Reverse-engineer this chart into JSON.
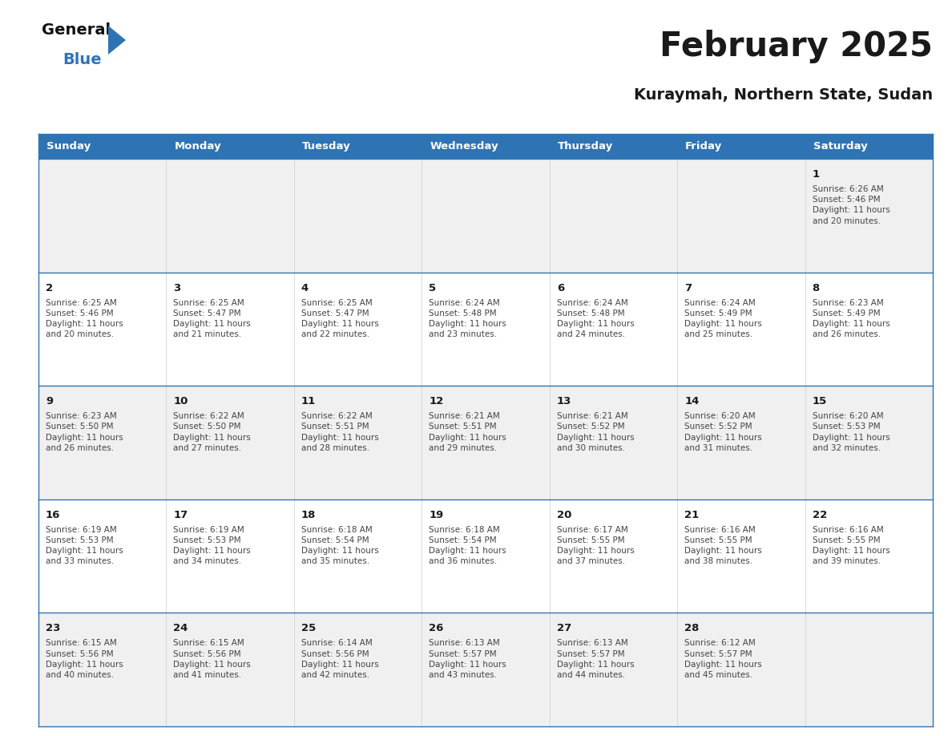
{
  "title": "February 2025",
  "subtitle": "Kuraymah, Northern State, Sudan",
  "header_bg": "#2E74B5",
  "header_text_color": "#FFFFFF",
  "cell_bg_odd": "#F0F0F0",
  "cell_bg_even": "#FFFFFF",
  "border_color": "#2E74B5",
  "inner_border_color": "#AAAAAA",
  "day_headers": [
    "Sunday",
    "Monday",
    "Tuesday",
    "Wednesday",
    "Thursday",
    "Friday",
    "Saturday"
  ],
  "calendar_data": [
    [
      null,
      null,
      null,
      null,
      null,
      null,
      {
        "day": "1",
        "sunrise": "6:26 AM",
        "sunset": "5:46 PM",
        "daylight": "11 hours\nand 20 minutes."
      }
    ],
    [
      {
        "day": "2",
        "sunrise": "6:25 AM",
        "sunset": "5:46 PM",
        "daylight": "11 hours\nand 20 minutes."
      },
      {
        "day": "3",
        "sunrise": "6:25 AM",
        "sunset": "5:47 PM",
        "daylight": "11 hours\nand 21 minutes."
      },
      {
        "day": "4",
        "sunrise": "6:25 AM",
        "sunset": "5:47 PM",
        "daylight": "11 hours\nand 22 minutes."
      },
      {
        "day": "5",
        "sunrise": "6:24 AM",
        "sunset": "5:48 PM",
        "daylight": "11 hours\nand 23 minutes."
      },
      {
        "day": "6",
        "sunrise": "6:24 AM",
        "sunset": "5:48 PM",
        "daylight": "11 hours\nand 24 minutes."
      },
      {
        "day": "7",
        "sunrise": "6:24 AM",
        "sunset": "5:49 PM",
        "daylight": "11 hours\nand 25 minutes."
      },
      {
        "day": "8",
        "sunrise": "6:23 AM",
        "sunset": "5:49 PM",
        "daylight": "11 hours\nand 26 minutes."
      }
    ],
    [
      {
        "day": "9",
        "sunrise": "6:23 AM",
        "sunset": "5:50 PM",
        "daylight": "11 hours\nand 26 minutes."
      },
      {
        "day": "10",
        "sunrise": "6:22 AM",
        "sunset": "5:50 PM",
        "daylight": "11 hours\nand 27 minutes."
      },
      {
        "day": "11",
        "sunrise": "6:22 AM",
        "sunset": "5:51 PM",
        "daylight": "11 hours\nand 28 minutes."
      },
      {
        "day": "12",
        "sunrise": "6:21 AM",
        "sunset": "5:51 PM",
        "daylight": "11 hours\nand 29 minutes."
      },
      {
        "day": "13",
        "sunrise": "6:21 AM",
        "sunset": "5:52 PM",
        "daylight": "11 hours\nand 30 minutes."
      },
      {
        "day": "14",
        "sunrise": "6:20 AM",
        "sunset": "5:52 PM",
        "daylight": "11 hours\nand 31 minutes."
      },
      {
        "day": "15",
        "sunrise": "6:20 AM",
        "sunset": "5:53 PM",
        "daylight": "11 hours\nand 32 minutes."
      }
    ],
    [
      {
        "day": "16",
        "sunrise": "6:19 AM",
        "sunset": "5:53 PM",
        "daylight": "11 hours\nand 33 minutes."
      },
      {
        "day": "17",
        "sunrise": "6:19 AM",
        "sunset": "5:53 PM",
        "daylight": "11 hours\nand 34 minutes."
      },
      {
        "day": "18",
        "sunrise": "6:18 AM",
        "sunset": "5:54 PM",
        "daylight": "11 hours\nand 35 minutes."
      },
      {
        "day": "19",
        "sunrise": "6:18 AM",
        "sunset": "5:54 PM",
        "daylight": "11 hours\nand 36 minutes."
      },
      {
        "day": "20",
        "sunrise": "6:17 AM",
        "sunset": "5:55 PM",
        "daylight": "11 hours\nand 37 minutes."
      },
      {
        "day": "21",
        "sunrise": "6:16 AM",
        "sunset": "5:55 PM",
        "daylight": "11 hours\nand 38 minutes."
      },
      {
        "day": "22",
        "sunrise": "6:16 AM",
        "sunset": "5:55 PM",
        "daylight": "11 hours\nand 39 minutes."
      }
    ],
    [
      {
        "day": "23",
        "sunrise": "6:15 AM",
        "sunset": "5:56 PM",
        "daylight": "11 hours\nand 40 minutes."
      },
      {
        "day": "24",
        "sunrise": "6:15 AM",
        "sunset": "5:56 PM",
        "daylight": "11 hours\nand 41 minutes."
      },
      {
        "day": "25",
        "sunrise": "6:14 AM",
        "sunset": "5:56 PM",
        "daylight": "11 hours\nand 42 minutes."
      },
      {
        "day": "26",
        "sunrise": "6:13 AM",
        "sunset": "5:57 PM",
        "daylight": "11 hours\nand 43 minutes."
      },
      {
        "day": "27",
        "sunrise": "6:13 AM",
        "sunset": "5:57 PM",
        "daylight": "11 hours\nand 44 minutes."
      },
      {
        "day": "28",
        "sunrise": "6:12 AM",
        "sunset": "5:57 PM",
        "daylight": "11 hours\nand 45 minutes."
      },
      null
    ]
  ],
  "logo_text_general": "General",
  "logo_text_blue": "Blue",
  "logo_triangle_color": "#2E74B5",
  "text_color_dark": "#1A1A1A",
  "text_color_blue": "#2E74B5",
  "cell_text_color": "#444444",
  "num_rows": 5,
  "num_cols": 7,
  "figwidth": 11.88,
  "figheight": 9.18,
  "dpi": 100
}
